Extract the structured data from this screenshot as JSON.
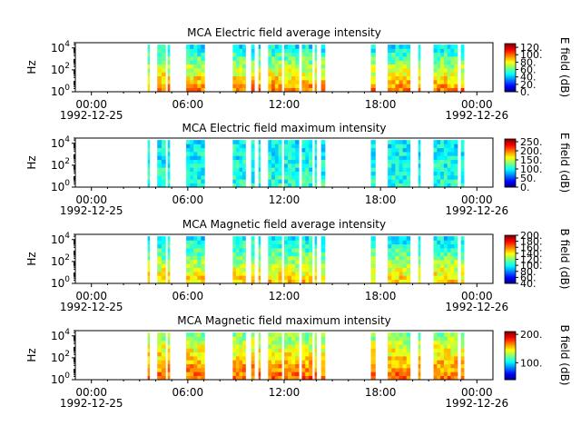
{
  "time_axis": {
    "start_date": "1992-12-25",
    "end_date": "1992-12-26",
    "tick_labels": [
      "00:00",
      "06:00",
      "12:00",
      "18:00",
      "00:00"
    ],
    "date_labels": [
      "1992-12-25",
      "1992-12-26"
    ]
  },
  "chart_data": [
    {
      "type": "heatmap",
      "title": "MCA  Electric field average intensity",
      "ylabel": "Hz",
      "yscale": "log",
      "ylim": [
        1,
        30000
      ],
      "y_tick_labels": [
        {
          "base": "10",
          "exp": "0"
        },
        {
          "base": "10",
          "exp": "2"
        },
        {
          "base": "10",
          "exp": "4"
        }
      ],
      "xlim_hours": [
        -1,
        25
      ],
      "colorbar": {
        "label": "E field (dB)",
        "range": [
          0,
          130
        ],
        "ticks": [
          0,
          20,
          40,
          60,
          80,
          100,
          120
        ],
        "tick_labels": [
          "0.",
          "20.",
          "40.",
          "60.",
          "80.",
          "100.",
          "120."
        ]
      },
      "data_blocks_hours": [
        [
          3.5,
          3.62
        ],
        [
          4.1,
          4.62
        ],
        [
          4.75,
          4.88
        ],
        [
          5.9,
          7.05
        ],
        [
          8.8,
          9.6
        ],
        [
          9.95,
          10.15
        ],
        [
          10.4,
          10.52
        ],
        [
          11.0,
          11.85
        ],
        [
          12.0,
          12.92
        ],
        [
          13.1,
          13.75
        ],
        [
          13.9,
          14.02
        ],
        [
          14.3,
          14.55
        ],
        [
          17.4,
          17.68
        ],
        [
          18.45,
          19.85
        ],
        [
          20.35,
          20.48
        ],
        [
          21.3,
          22.8
        ],
        [
          23.0,
          23.2
        ]
      ],
      "intensity_low_freq_db": 100,
      "intensity_high_freq_db": 45
    },
    {
      "type": "heatmap",
      "title": "MCA  Electric field maximum intensity",
      "ylabel": "Hz",
      "yscale": "log",
      "ylim": [
        1,
        30000
      ],
      "y_tick_labels": [
        {
          "base": "10",
          "exp": "0"
        },
        {
          "base": "10",
          "exp": "2"
        },
        {
          "base": "10",
          "exp": "4"
        }
      ],
      "xlim_hours": [
        -1,
        25
      ],
      "colorbar": {
        "label": "E field (dB)",
        "range": [
          0,
          265
        ],
        "ticks": [
          0,
          50,
          100,
          150,
          200,
          250
        ],
        "tick_labels": [
          "0.",
          "50.",
          "100.",
          "150.",
          "200.",
          "250."
        ]
      },
      "data_blocks_hours": [
        [
          3.5,
          3.62
        ],
        [
          4.1,
          4.62
        ],
        [
          4.75,
          4.88
        ],
        [
          5.9,
          7.05
        ],
        [
          8.8,
          9.6
        ],
        [
          9.95,
          10.15
        ],
        [
          10.4,
          10.52
        ],
        [
          11.0,
          11.85
        ],
        [
          12.0,
          12.92
        ],
        [
          13.1,
          13.75
        ],
        [
          13.9,
          14.02
        ],
        [
          14.3,
          14.55
        ],
        [
          17.4,
          17.68
        ],
        [
          18.45,
          19.85
        ],
        [
          20.35,
          20.48
        ],
        [
          21.3,
          22.8
        ],
        [
          23.0,
          23.2
        ]
      ],
      "intensity_low_freq_db": 110,
      "intensity_high_freq_db": 95
    },
    {
      "type": "heatmap",
      "title": "MCA  Magnetic field average intensity",
      "ylabel": "Hz",
      "yscale": "log",
      "ylim": [
        1,
        30000
      ],
      "y_tick_labels": [
        {
          "base": "10",
          "exp": "0"
        },
        {
          "base": "10",
          "exp": "2"
        },
        {
          "base": "10",
          "exp": "4"
        }
      ],
      "xlim_hours": [
        -1,
        25
      ],
      "colorbar": {
        "label": "B field (dB)",
        "range": [
          40,
          200
        ],
        "ticks": [
          40,
          60,
          80,
          100,
          120,
          140,
          160,
          180,
          200
        ],
        "tick_labels": [
          "40.",
          "60.",
          "80.",
          "100.",
          "120.",
          "140.",
          "160.",
          "180.",
          "200."
        ]
      },
      "data_blocks_hours": [
        [
          3.5,
          3.62
        ],
        [
          4.1,
          4.62
        ],
        [
          4.75,
          4.88
        ],
        [
          5.9,
          7.05
        ],
        [
          8.8,
          9.6
        ],
        [
          9.95,
          10.15
        ],
        [
          10.4,
          10.52
        ],
        [
          11.0,
          11.85
        ],
        [
          12.0,
          12.92
        ],
        [
          13.1,
          13.75
        ],
        [
          13.9,
          14.02
        ],
        [
          14.3,
          14.55
        ],
        [
          17.4,
          17.68
        ],
        [
          18.45,
          19.85
        ],
        [
          20.35,
          20.48
        ],
        [
          21.3,
          22.8
        ],
        [
          23.0,
          23.2
        ]
      ],
      "intensity_low_freq_db": 150,
      "intensity_high_freq_db": 95
    },
    {
      "type": "heatmap",
      "title": "MCA  Magnetic field maximum intensity",
      "ylabel": "Hz",
      "yscale": "log",
      "ylim": [
        1,
        30000
      ],
      "y_tick_labels": [
        {
          "base": "10",
          "exp": "0"
        },
        {
          "base": "10",
          "exp": "2"
        },
        {
          "base": "10",
          "exp": "4"
        }
      ],
      "xlim_hours": [
        -1,
        25
      ],
      "colorbar": {
        "label": "B field (dB)",
        "range": [
          40,
          210
        ],
        "ticks": [
          100,
          200
        ],
        "tick_labels": [
          "100.",
          "200."
        ]
      },
      "data_blocks_hours": [
        [
          3.5,
          3.62
        ],
        [
          4.1,
          4.62
        ],
        [
          4.75,
          4.88
        ],
        [
          5.9,
          7.05
        ],
        [
          8.8,
          9.6
        ],
        [
          9.95,
          10.15
        ],
        [
          10.4,
          10.52
        ],
        [
          11.0,
          11.85
        ],
        [
          12.0,
          12.92
        ],
        [
          13.1,
          13.75
        ],
        [
          13.9,
          14.02
        ],
        [
          14.3,
          14.55
        ],
        [
          17.4,
          17.68
        ],
        [
          18.45,
          19.85
        ],
        [
          20.35,
          20.48
        ],
        [
          21.3,
          22.8
        ],
        [
          23.0,
          23.2
        ]
      ],
      "intensity_low_freq_db": 175,
      "intensity_high_freq_db": 125
    }
  ]
}
